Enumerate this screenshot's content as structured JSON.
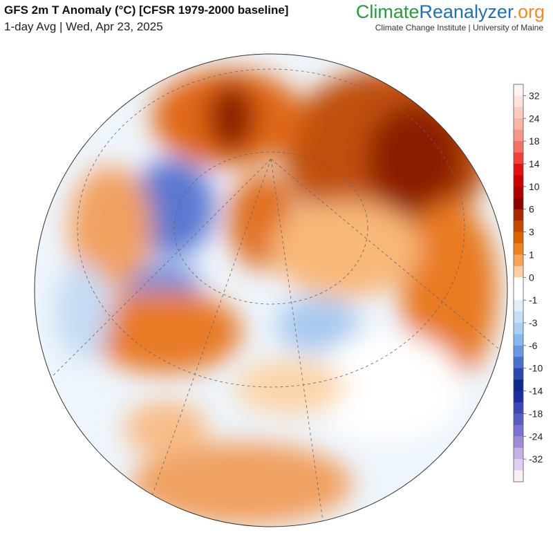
{
  "header": {
    "title": "GFS 2m T Anomaly (°C) [CFSR 1979-2000 baseline]",
    "subtitle": "1-day Avg | Wed, Apr 23, 2025"
  },
  "brand": {
    "parts": [
      "Climate",
      "Reanalyzer",
      ".org"
    ],
    "colors": [
      "#2a9a3c",
      "#1f6fb4",
      "#f08a24"
    ],
    "tagline": "Climate Change Institute | University of Maine"
  },
  "colorbar": {
    "ticks": [
      32,
      24,
      18,
      14,
      10,
      6,
      3,
      1,
      0,
      -1,
      -3,
      -6,
      -10,
      -14,
      -18,
      -24,
      -32
    ],
    "colors": [
      "#fef2f2",
      "#fde2dc",
      "#fccbbf",
      "#fab3a5",
      "#f8968a",
      "#f4706a",
      "#f0403a",
      "#e41010",
      "#cc0000",
      "#b00000",
      "#8c0000",
      "#a82800",
      "#c44800",
      "#dc6400",
      "#f08020",
      "#f6a458",
      "#fbcfa4",
      "#ffffff",
      "#ffffff",
      "#e0eefa",
      "#c4def6",
      "#a8cef2",
      "#88b8ec",
      "#6898e0",
      "#4a70cc",
      "#2a48b0",
      "#102888",
      "#1c2ea0",
      "#3c48b8",
      "#5a5cc4",
      "#7c70d0",
      "#a08ad8",
      "#c4b0e4",
      "#e0d0f0",
      "#fbeef4"
    ]
  }
}
